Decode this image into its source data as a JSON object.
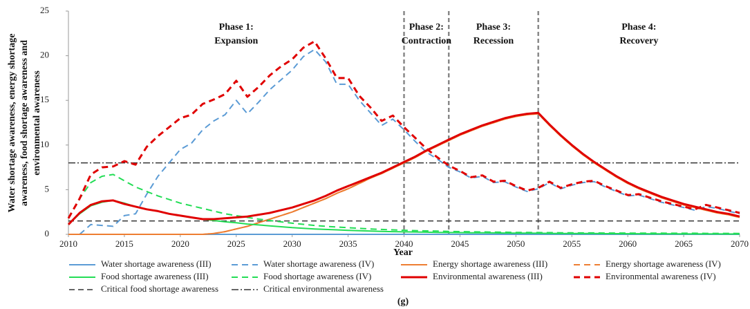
{
  "chart_data": {
    "type": "line",
    "y_label_lines": [
      "Water shortage awareness, energy shortage",
      "awareness, food shortage awareness and",
      "environmental awareness"
    ],
    "x_label": "Year",
    "caption": "(g)",
    "xlim": [
      2010,
      2070
    ],
    "xticks": [
      2010,
      2015,
      2020,
      2025,
      2030,
      2035,
      2040,
      2045,
      2050,
      2055,
      2060,
      2065,
      2070
    ],
    "ylim": [
      0,
      25
    ],
    "yticks": [
      0,
      5,
      10,
      15,
      20,
      25
    ],
    "x": [
      2010,
      2011,
      2012,
      2013,
      2014,
      2015,
      2016,
      2017,
      2018,
      2019,
      2020,
      2021,
      2022,
      2023,
      2024,
      2025,
      2026,
      2027,
      2028,
      2029,
      2030,
      2031,
      2032,
      2033,
      2034,
      2035,
      2036,
      2037,
      2038,
      2039,
      2040,
      2041,
      2042,
      2043,
      2044,
      2045,
      2046,
      2047,
      2048,
      2049,
      2050,
      2051,
      2052,
      2053,
      2054,
      2055,
      2056,
      2057,
      2058,
      2059,
      2060,
      2061,
      2062,
      2063,
      2064,
      2065,
      2066,
      2067,
      2068,
      2069,
      2070
    ],
    "series": [
      {
        "name": "Water shortage awareness (III)",
        "color": "#5b9bd5",
        "dashed": false,
        "line_width": 2,
        "values": [
          0,
          0,
          0,
          0,
          0,
          0,
          0,
          0,
          0,
          0,
          0,
          0,
          0,
          0,
          0,
          0,
          0,
          0,
          0,
          0,
          0,
          0,
          0,
          0,
          0,
          0,
          0,
          0,
          0,
          0,
          0,
          0,
          0,
          0,
          0,
          0,
          0,
          0,
          0,
          0,
          0,
          0,
          0,
          0,
          0,
          0,
          0,
          0,
          0,
          0,
          0,
          0,
          0,
          0,
          0,
          0,
          0,
          0,
          0,
          0,
          0
        ]
      },
      {
        "name": "Water shortage awareness (IV)",
        "color": "#5b9bd5",
        "dashed": true,
        "line_width": 2,
        "values": [
          null,
          0,
          1.1,
          1.0,
          0.9,
          2.1,
          2.3,
          4.5,
          6.5,
          8.0,
          9.5,
          10.2,
          11.7,
          12.7,
          13.4,
          15.0,
          13.5,
          14.8,
          16.2,
          17.3,
          18.4,
          19.9,
          20.7,
          19.3,
          16.8,
          16.8,
          15.0,
          13.6,
          12.2,
          12.9,
          11.7,
          10.4,
          9.2,
          8.4,
          7.5,
          7.0,
          6.3,
          6.5,
          5.8,
          5.9,
          5.3,
          4.8,
          5.1,
          5.8,
          5.1,
          5.5,
          5.8,
          5.9,
          5.3,
          4.8,
          4.3,
          4.4,
          4.0,
          3.6,
          3.3,
          3.0,
          2.7,
          3.1,
          2.9,
          2.6,
          2.3
        ]
      },
      {
        "name": "Energy shortage awareness (III)",
        "color": "#ed7d31",
        "dashed": false,
        "line_width": 2,
        "values": [
          0,
          0,
          0,
          0,
          0,
          0,
          0,
          0,
          0,
          0,
          0,
          0,
          0,
          0.1,
          0.3,
          0.6,
          0.9,
          1.3,
          1.7,
          2.1,
          2.5,
          3.0,
          3.5,
          4.0,
          4.6,
          5.1,
          5.7,
          6.3,
          6.8,
          7.4,
          8.0,
          8.6,
          9.3,
          9.9,
          10.5,
          11.1,
          11.6,
          12.1,
          12.5,
          12.9,
          13.2,
          13.4,
          13.5,
          12.2,
          11.0,
          9.9,
          8.9,
          8.0,
          7.2,
          6.4,
          5.7,
          5.1,
          4.6,
          4.1,
          3.7,
          3.3,
          3.0,
          2.7,
          2.4,
          2.2,
          1.9
        ]
      },
      {
        "name": "Energy shortage awareness (IV)",
        "color": "#ed7d31",
        "dashed": true,
        "line_width": 2,
        "values": [
          0,
          0,
          0,
          0,
          0,
          0,
          0,
          0,
          0,
          0,
          0,
          0,
          0,
          0.1,
          0.3,
          0.6,
          0.9,
          1.3,
          1.7,
          2.1,
          2.5,
          3.0,
          3.5,
          4.0,
          4.6,
          5.1,
          5.7,
          6.3,
          6.8,
          7.4,
          8.0,
          8.6,
          9.3,
          9.9,
          10.5,
          11.1,
          11.6,
          12.1,
          12.5,
          12.9,
          13.2,
          13.4,
          13.5,
          12.2,
          11.0,
          9.9,
          8.9,
          8.0,
          7.2,
          6.4,
          5.7,
          5.1,
          4.6,
          4.1,
          3.7,
          3.3,
          3.0,
          2.7,
          2.4,
          2.2,
          1.9
        ]
      },
      {
        "name": "Food shortage awareness (III)",
        "color": "#22dd55",
        "dashed": false,
        "line_width": 2,
        "values": [
          1.1,
          2.3,
          3.2,
          3.6,
          3.8,
          3.5,
          3.1,
          2.8,
          2.6,
          2.3,
          2.1,
          1.9,
          1.7,
          1.55,
          1.4,
          1.3,
          1.15,
          1.05,
          0.95,
          0.85,
          0.75,
          0.68,
          0.6,
          0.55,
          0.5,
          0.45,
          0.4,
          0.37,
          0.33,
          0.3,
          0.28,
          0.26,
          0.24,
          0.22,
          0.2,
          0.19,
          0.18,
          0.17,
          0.16,
          0.15,
          0.14,
          0.13,
          0.12,
          0.11,
          0.1,
          0.1,
          0.09,
          0.09,
          0.08,
          0.08,
          0.07,
          0.07,
          0.06,
          0.06,
          0.06,
          0.05,
          0.05,
          0.05,
          0.05,
          0.04,
          0.04
        ]
      },
      {
        "name": "Food shortage awareness (IV)",
        "color": "#22dd55",
        "dashed": true,
        "line_width": 2,
        "values": [
          1.8,
          4.0,
          5.8,
          6.5,
          6.7,
          6.0,
          5.3,
          4.8,
          4.3,
          3.9,
          3.5,
          3.2,
          2.9,
          2.6,
          2.3,
          2.1,
          1.9,
          1.7,
          1.55,
          1.4,
          1.25,
          1.12,
          1.0,
          0.9,
          0.82,
          0.74,
          0.67,
          0.6,
          0.55,
          0.5,
          0.46,
          0.42,
          0.39,
          0.36,
          0.33,
          0.31,
          0.29,
          0.27,
          0.25,
          0.24,
          0.22,
          0.21,
          0.2,
          0.19,
          0.18,
          0.17,
          0.16,
          0.16,
          0.15,
          0.15,
          0.14,
          0.14,
          0.13,
          0.13,
          0.12,
          0.12,
          0.12,
          0.11,
          0.11,
          0.11,
          0.1
        ]
      },
      {
        "name": "Environmental awareness (III)",
        "color": "#e00000",
        "dashed": false,
        "line_width": 3,
        "values": [
          1.1,
          2.4,
          3.3,
          3.7,
          3.8,
          3.4,
          3.1,
          2.8,
          2.6,
          2.3,
          2.1,
          1.9,
          1.7,
          1.7,
          1.8,
          1.9,
          2.0,
          2.2,
          2.4,
          2.7,
          3.0,
          3.4,
          3.8,
          4.3,
          4.9,
          5.4,
          5.9,
          6.4,
          6.9,
          7.5,
          8.1,
          8.7,
          9.4,
          10.0,
          10.6,
          11.2,
          11.7,
          12.2,
          12.6,
          13.0,
          13.3,
          13.5,
          13.6,
          12.3,
          11.1,
          10.0,
          9.0,
          8.1,
          7.3,
          6.5,
          5.8,
          5.2,
          4.7,
          4.2,
          3.8,
          3.4,
          3.1,
          2.8,
          2.5,
          2.3,
          2.0
        ]
      },
      {
        "name": "Environmental awareness (IV)",
        "color": "#e00000",
        "dashed": true,
        "line_width": 3,
        "values": [
          1.8,
          4.0,
          6.7,
          7.5,
          7.6,
          8.2,
          7.8,
          9.8,
          11.0,
          12.0,
          13.0,
          13.4,
          14.6,
          15.1,
          15.7,
          17.2,
          15.4,
          16.5,
          17.8,
          18.8,
          19.6,
          20.9,
          21.6,
          19.7,
          17.5,
          17.5,
          15.5,
          14.2,
          12.7,
          13.3,
          12.0,
          10.8,
          9.6,
          8.6,
          7.7,
          7.1,
          6.4,
          6.6,
          5.9,
          6.0,
          5.4,
          4.9,
          5.2,
          5.9,
          5.2,
          5.6,
          5.9,
          6.0,
          5.4,
          4.9,
          4.4,
          4.5,
          4.1,
          3.7,
          3.4,
          3.1,
          2.8,
          3.3,
          3.0,
          2.7,
          2.4
        ]
      }
    ],
    "reference_lines": [
      {
        "name": "Critical food shortage awareness",
        "value": 1.5,
        "color": "#333333",
        "dash": "8,5"
      },
      {
        "name": "Critical environmental awareness",
        "value": 8,
        "color": "#333333",
        "dash": "10,3,2,3"
      }
    ],
    "phase_boundaries": [
      2040,
      2044,
      2052
    ],
    "phase_boundary_color": "#888888",
    "phases": [
      {
        "title": "Phase 1:",
        "name": "Expansion"
      },
      {
        "title": "Phase 2:",
        "name": "Contraction"
      },
      {
        "title": "Phase 3:",
        "name": "Recession"
      },
      {
        "title": "Phase 4:",
        "name": "Recovery"
      }
    ]
  }
}
